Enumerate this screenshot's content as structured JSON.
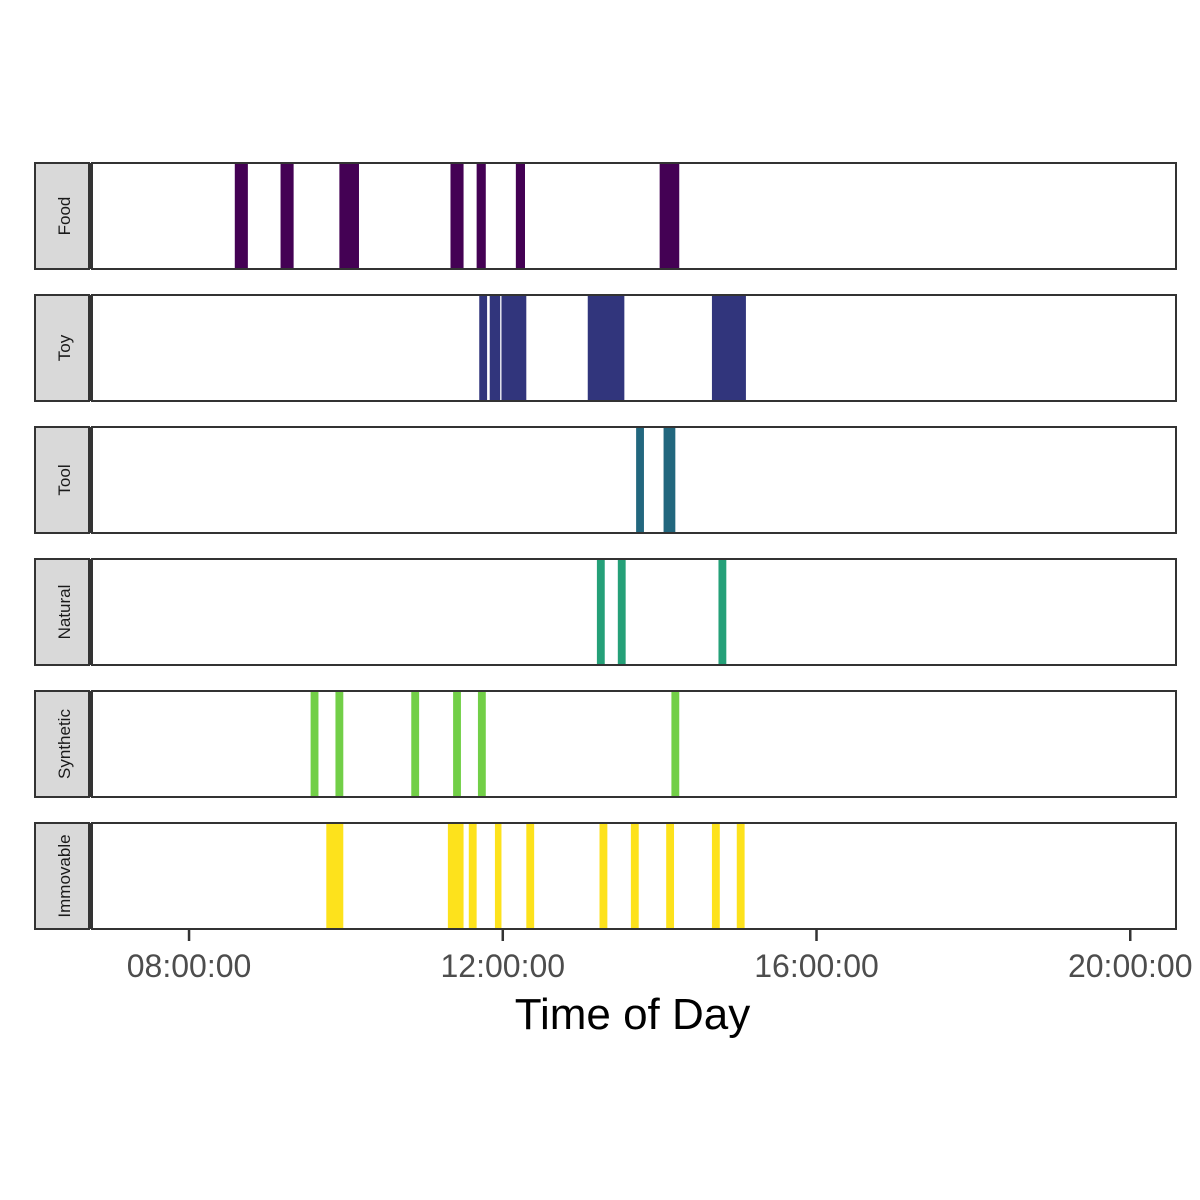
{
  "chart_data": {
    "type": "timeline",
    "xlabel": "Time of Day",
    "x_ticks": [
      "08:00:00",
      "12:00:00",
      "16:00:00",
      "20:00:00"
    ],
    "xlim": [
      "06:45:00",
      "20:35:00"
    ],
    "grid": false,
    "legend": "none",
    "series": [
      {
        "name": "Food",
        "color": "#440154",
        "intervals": [
          [
            "08:35:00",
            "08:45:00"
          ],
          [
            "09:10:00",
            "09:20:00"
          ],
          [
            "09:55:00",
            "10:10:00"
          ],
          [
            "11:20:00",
            "11:30:00"
          ],
          [
            "11:40:00",
            "11:47:00"
          ],
          [
            "12:10:00",
            "12:17:00"
          ],
          [
            "14:00:00",
            "14:15:00"
          ]
        ]
      },
      {
        "name": "Toy",
        "color": "#31357c",
        "intervals": [
          [
            "11:42:00",
            "11:48:00"
          ],
          [
            "11:50:00",
            "11:58:00"
          ],
          [
            "11:59:00",
            "12:18:00"
          ],
          [
            "13:05:00",
            "13:33:00"
          ],
          [
            "14:40:00",
            "15:06:00"
          ]
        ]
      },
      {
        "name": "Tool",
        "color": "#22677e",
        "intervals": [
          [
            "13:42:00",
            "13:48:00"
          ],
          [
            "14:03:00",
            "14:12:00"
          ]
        ]
      },
      {
        "name": "Natural",
        "color": "#25a078",
        "intervals": [
          [
            "13:12:00",
            "13:18:00"
          ],
          [
            "13:28:00",
            "13:34:00"
          ],
          [
            "14:45:00",
            "14:51:00"
          ]
        ]
      },
      {
        "name": "Synthetic",
        "color": "#72cf47",
        "intervals": [
          [
            "09:33:00",
            "09:39:00"
          ],
          [
            "09:52:00",
            "09:58:00"
          ],
          [
            "10:50:00",
            "10:56:00"
          ],
          [
            "11:22:00",
            "11:28:00"
          ],
          [
            "11:41:00",
            "11:47:00"
          ],
          [
            "14:09:00",
            "14:15:00"
          ]
        ]
      },
      {
        "name": "Immovable",
        "color": "#fde21c",
        "intervals": [
          [
            "09:45:00",
            "09:58:00"
          ],
          [
            "11:18:00",
            "11:30:00"
          ],
          [
            "11:34:00",
            "11:40:00"
          ],
          [
            "11:54:00",
            "11:59:00"
          ],
          [
            "12:18:00",
            "12:24:00"
          ],
          [
            "13:14:00",
            "13:20:00"
          ],
          [
            "13:38:00",
            "13:44:00"
          ],
          [
            "14:05:00",
            "14:11:00"
          ],
          [
            "14:40:00",
            "14:46:00"
          ],
          [
            "14:59:00",
            "15:05:00"
          ]
        ]
      }
    ]
  }
}
